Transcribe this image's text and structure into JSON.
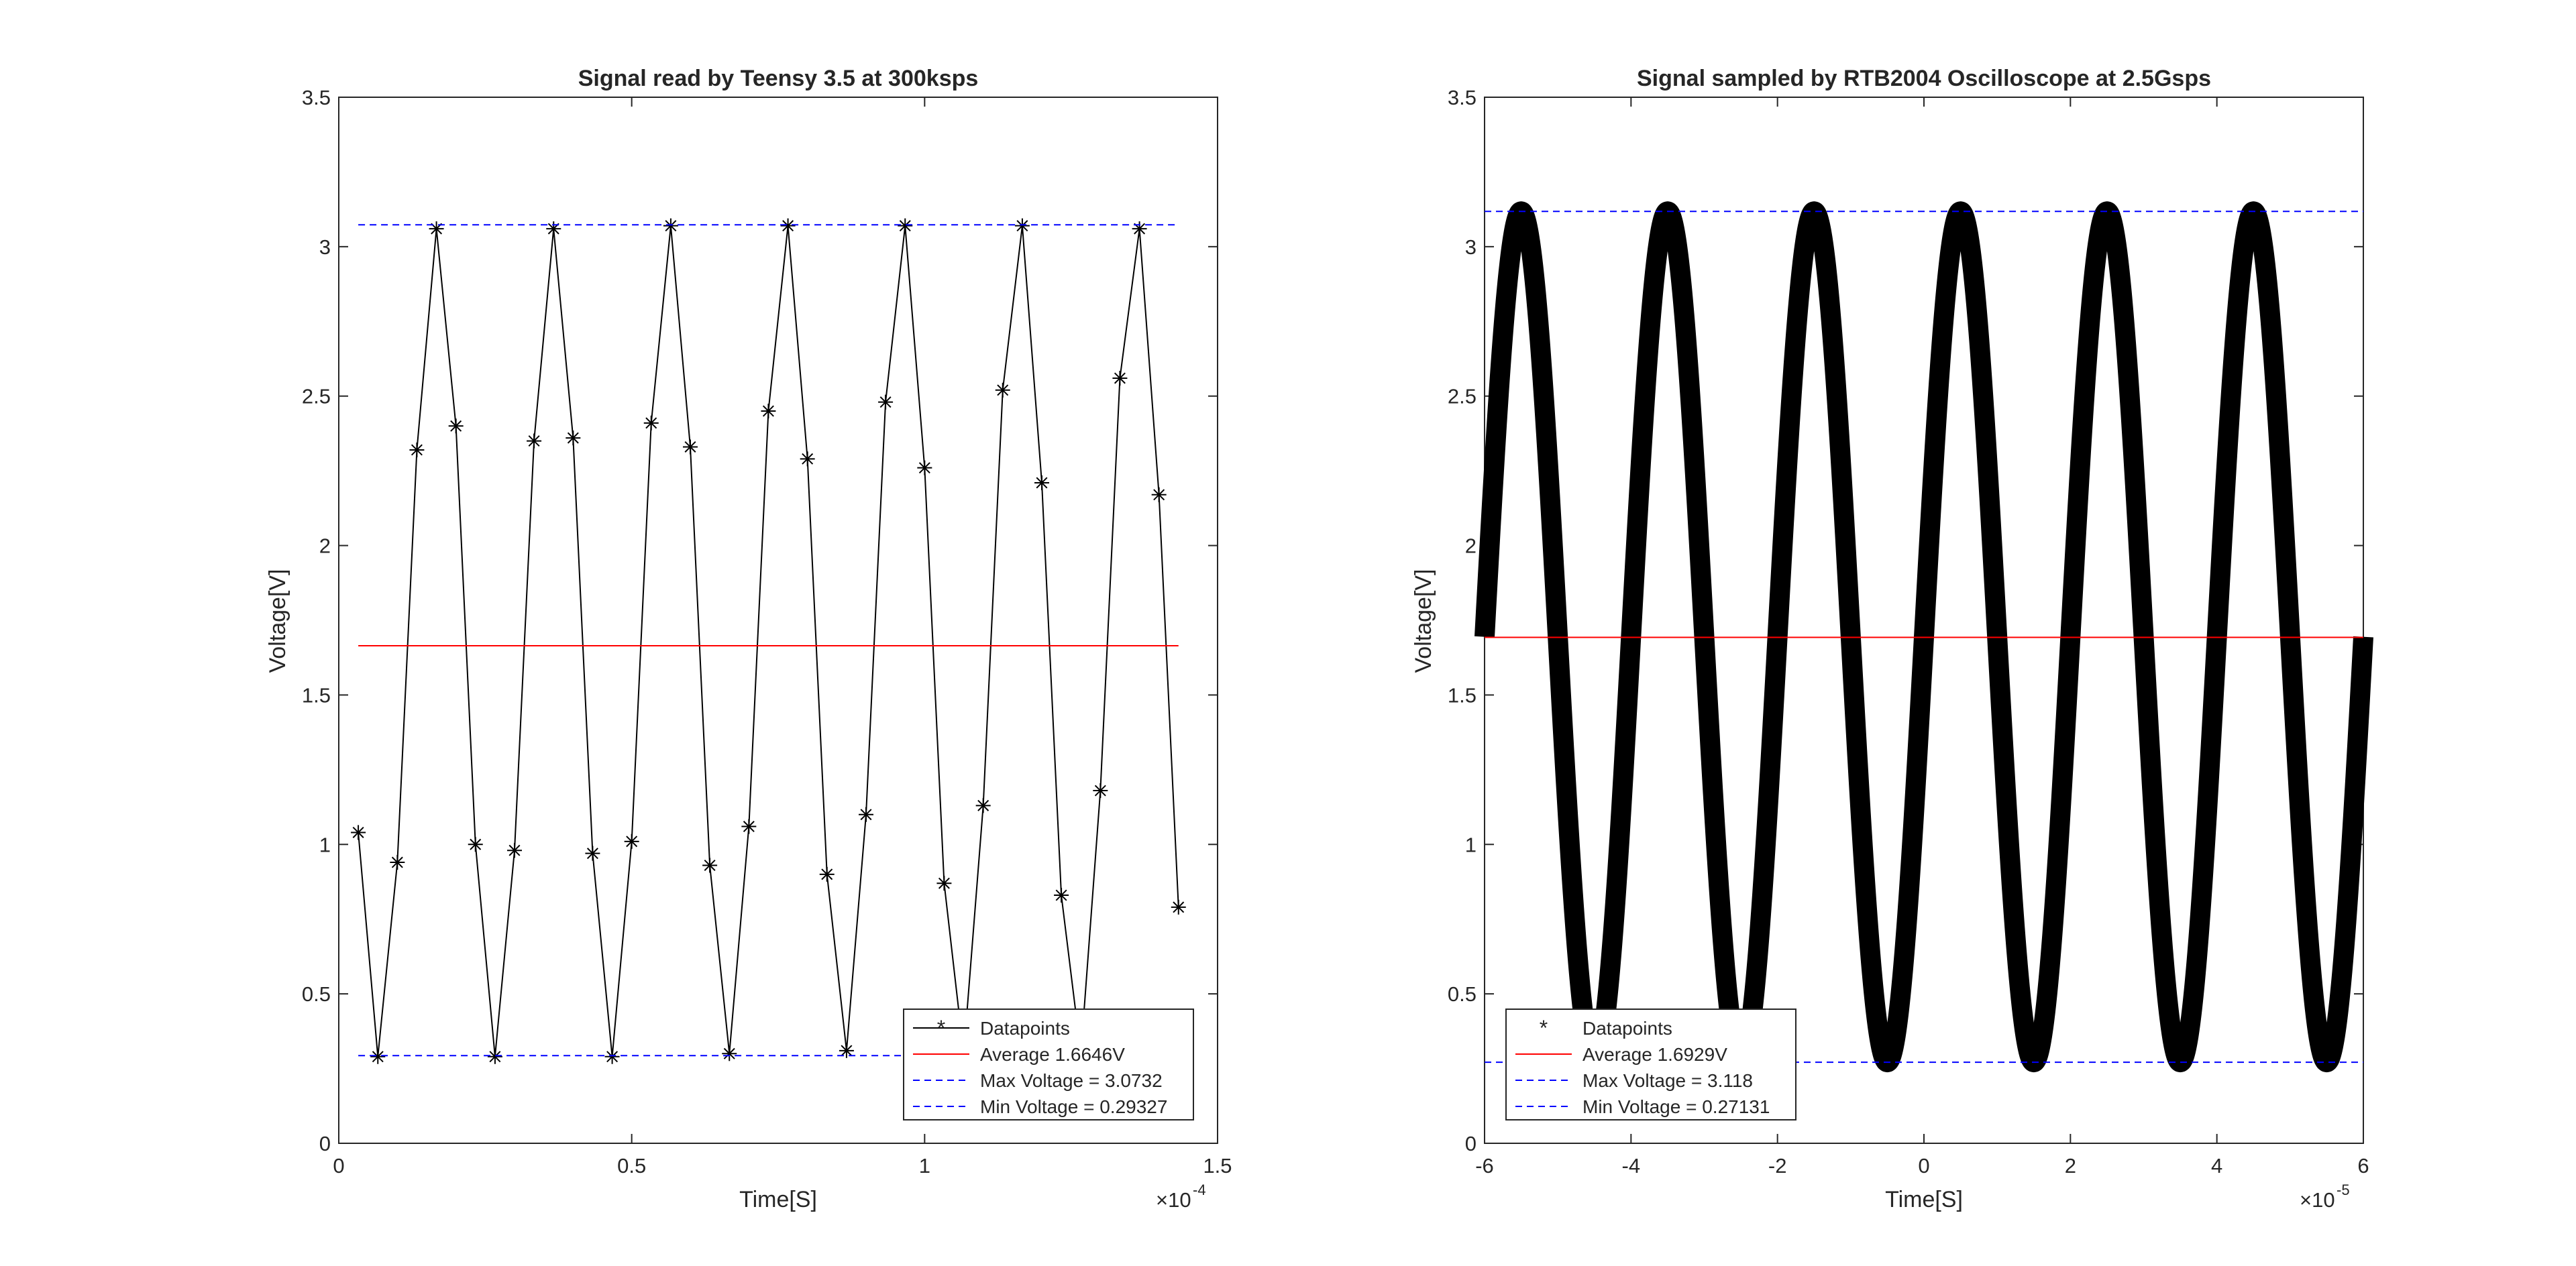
{
  "figure": {
    "background": "#ffffff"
  },
  "chart_data": [
    {
      "type": "line",
      "title": "Signal read by Teensy 3.5 at 300ksps",
      "xlabel": "Time[S]",
      "ylabel": "Voltage[V]",
      "x_exponent_label": "×10",
      "x_exponent": "-4",
      "xlim": [
        0,
        0.00015
      ],
      "ylim": [
        0,
        3.5
      ],
      "x_ticks": [
        0,
        5e-05,
        0.0001,
        0.00015
      ],
      "x_tick_labels": [
        "0",
        "0.5",
        "1",
        "1.5"
      ],
      "y_ticks": [
        0,
        0.5,
        1,
        1.5,
        2,
        2.5,
        3,
        3.5
      ],
      "y_tick_labels": [
        "0",
        "0.5",
        "1",
        "1.5",
        "2",
        "2.5",
        "3",
        "3.5"
      ],
      "grid": false,
      "legend_location": "bottom-right",
      "series": [
        {
          "name": "Datapoints",
          "style": "line-star",
          "color": "#000000",
          "x": [
            3.33e-06,
            6.67e-06,
            1e-05,
            1.333e-05,
            1.667e-05,
            2e-05,
            2.333e-05,
            2.667e-05,
            3e-05,
            3.333e-05,
            3.667e-05,
            4e-05,
            4.333e-05,
            4.667e-05,
            5e-05,
            5.333e-05,
            5.667e-05,
            6e-05,
            6.333e-05,
            6.667e-05,
            7e-05,
            7.333e-05,
            7.667e-05,
            8e-05,
            8.333e-05,
            8.667e-05,
            9e-05,
            9.333e-05,
            9.667e-05,
            0.0001,
            0.00010333,
            0.00010667,
            0.00011,
            0.00011333,
            0.00011667,
            0.00012,
            0.00012333,
            0.00012667,
            0.00013,
            0.00013333,
            0.00013667,
            0.00014,
            0.00014333
          ],
          "y": [
            1.04,
            0.29,
            0.94,
            2.32,
            3.06,
            2.4,
            1.0,
            0.29,
            0.98,
            2.35,
            3.06,
            2.36,
            0.97,
            0.29,
            1.01,
            2.41,
            3.07,
            2.33,
            0.93,
            0.3,
            1.06,
            2.45,
            3.07,
            2.29,
            0.9,
            0.31,
            1.1,
            2.48,
            3.07,
            2.26,
            0.87,
            0.3,
            1.13,
            2.52,
            3.07,
            2.21,
            0.83,
            0.3,
            1.18,
            2.56,
            3.06,
            2.17,
            0.79
          ]
        },
        {
          "name": "Average 1.6646V",
          "style": "line",
          "color": "#ff0000",
          "x": [
            3.33e-06,
            0.00014333
          ],
          "y": [
            1.6646,
            1.6646
          ]
        },
        {
          "name": "Max Voltage = 3.0732",
          "style": "dashed",
          "color": "#0000ff",
          "x": [
            3.33e-06,
            0.00014333
          ],
          "y": [
            3.0732,
            3.0732
          ]
        },
        {
          "name": "Min Voltage = 0.29327",
          "style": "dashed",
          "color": "#0000ff",
          "x": [
            3.33e-06,
            0.00014333
          ],
          "y": [
            0.29327,
            0.29327
          ]
        }
      ]
    },
    {
      "type": "scatter",
      "title": "Signal sampled by RTB2004 Oscilloscope at 2.5Gsps",
      "xlabel": "Time[S]",
      "ylabel": "Voltage[V]",
      "x_exponent_label": "×10",
      "x_exponent": "-5",
      "xlim": [
        -6e-05,
        6e-05
      ],
      "ylim": [
        0,
        3.5
      ],
      "x_ticks": [
        -6e-05,
        -4e-05,
        -2e-05,
        0,
        2e-05,
        4e-05,
        6e-05
      ],
      "x_tick_labels": [
        "-6",
        "-4",
        "-2",
        "0",
        "2",
        "4",
        "6"
      ],
      "y_ticks": [
        0,
        0.5,
        1,
        1.5,
        2,
        2.5,
        3,
        3.5
      ],
      "y_tick_labels": [
        "0",
        "0.5",
        "1",
        "1.5",
        "2",
        "2.5",
        "3",
        "3.5"
      ],
      "grid": false,
      "legend_location": "bottom-left",
      "series": [
        {
          "name": "Datapoints",
          "style": "dense-star",
          "color": "#000000",
          "model": {
            "function": "sine",
            "amplitude": 1.4233,
            "offset": 1.6946,
            "period": 2e-05,
            "phase_start": -6e-05,
            "x_start": -6e-05,
            "x_end": 6e-05
          }
        },
        {
          "name": "Average 1.6929V",
          "style": "line",
          "color": "#ff0000",
          "x": [
            -6e-05,
            6e-05
          ],
          "y": [
            1.6929,
            1.6929
          ]
        },
        {
          "name": "Max Voltage = 3.118",
          "style": "dashed",
          "color": "#0000ff",
          "x": [
            -6e-05,
            6e-05
          ],
          "y": [
            3.118,
            3.118
          ]
        },
        {
          "name": "Min Voltage = 0.27131",
          "style": "dashed",
          "color": "#0000ff",
          "x": [
            -6e-05,
            6e-05
          ],
          "y": [
            0.27131,
            0.27131
          ]
        }
      ]
    }
  ]
}
